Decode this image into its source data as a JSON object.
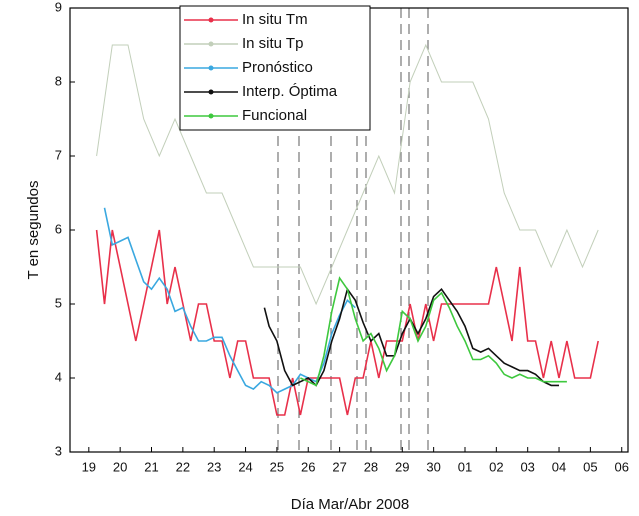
{
  "chart_data": {
    "type": "line",
    "xlabel": "Día Mar/Abr 2008",
    "ylabel": "T en segundos",
    "xlim": [
      -0.6,
      17.2
    ],
    "xticks": [
      {
        "value": 0,
        "label": "19"
      },
      {
        "value": 1,
        "label": "20"
      },
      {
        "value": 2,
        "label": "21"
      },
      {
        "value": 3,
        "label": "22"
      },
      {
        "value": 4,
        "label": "23"
      },
      {
        "value": 5,
        "label": "24"
      },
      {
        "value": 6,
        "label": "25"
      },
      {
        "value": 7,
        "label": "26"
      },
      {
        "value": 8,
        "label": "27"
      },
      {
        "value": 9,
        "label": "28"
      },
      {
        "value": 10,
        "label": "29"
      },
      {
        "value": 11,
        "label": "30"
      },
      {
        "value": 12,
        "label": "01"
      },
      {
        "value": 13,
        "label": "02"
      },
      {
        "value": 14,
        "label": "03"
      },
      {
        "value": 15,
        "label": "04"
      },
      {
        "value": 16,
        "label": "05"
      },
      {
        "value": 17,
        "label": "06"
      }
    ],
    "ylim": [
      3,
      9
    ],
    "yticks": [
      3,
      4,
      5,
      6,
      7,
      8,
      9
    ],
    "grid": false,
    "legend": "top",
    "series": [
      {
        "name": "In situ Tm",
        "color": "#e8304a",
        "x": [
          0.25,
          0.5,
          0.75,
          1,
          1.25,
          1.5,
          1.75,
          2,
          2.25,
          2.5,
          2.75,
          3,
          3.25,
          3.5,
          3.75,
          4,
          4.25,
          4.5,
          4.75,
          5,
          5.25,
          5.5,
          5.75,
          6,
          6.25,
          6.5,
          6.75,
          7,
          7.25,
          7.5,
          7.75,
          8,
          8.25,
          8.5,
          8.75,
          9,
          9.25,
          9.5,
          9.75,
          10,
          10.25,
          10.5,
          10.75,
          11,
          11.25,
          11.5,
          11.75,
          12,
          12.25,
          12.5,
          12.75,
          13,
          13.25,
          13.5,
          13.75,
          14,
          14.25,
          14.5,
          14.75,
          15,
          15.25,
          15.5,
          15.75,
          16,
          16.25
        ],
        "values": [
          6,
          5,
          6,
          5.5,
          5,
          4.5,
          5,
          5.5,
          6,
          5,
          5.5,
          5,
          4.5,
          5,
          5,
          4.5,
          4.5,
          4,
          4.5,
          4.5,
          4,
          4,
          4,
          3.5,
          3.5,
          4,
          3.5,
          4,
          4,
          4,
          4,
          4,
          3.5,
          4,
          4,
          4.5,
          4,
          4.5,
          4.5,
          4.5,
          5,
          4.5,
          5,
          4.5,
          5,
          5,
          5,
          5,
          5,
          5,
          5,
          5.5,
          5,
          4.5,
          5.5,
          4.5,
          4.5,
          4,
          4.5,
          4,
          4.5,
          4,
          4,
          4,
          4.5
        ]
      },
      {
        "name": "In situ Tp",
        "color": "#c2cfba",
        "x": [
          0.25,
          0.75,
          1.25,
          1.75,
          2.25,
          2.75,
          3.25,
          3.75,
          4.25,
          4.75,
          5.25,
          5.75,
          6.25,
          6.75,
          7.25,
          7.75,
          8.25,
          8.75,
          9.25,
          9.75,
          10.25,
          10.75,
          11.25,
          11.75,
          12.25,
          12.75,
          13.25,
          13.75,
          14.25,
          14.75,
          15.25,
          15.75,
          16.25
        ],
        "values": [
          7,
          8.5,
          8.5,
          7.5,
          7,
          7.5,
          7,
          6.5,
          6.5,
          6,
          5.5,
          5.5,
          5.5,
          5.5,
          5,
          5.5,
          6,
          6.5,
          7,
          6.5,
          8,
          8.5,
          8,
          8,
          8,
          7.5,
          6.5,
          6,
          6,
          5.5,
          6,
          5.5,
          6
        ]
      },
      {
        "name": "Pronóstico",
        "color": "#3aa8e0",
        "x": [
          0.5,
          0.75,
          1,
          1.25,
          1.5,
          1.75,
          2,
          2.25,
          2.5,
          2.75,
          3,
          3.25,
          3.5,
          3.75,
          4,
          4.25,
          4.5,
          4.75,
          5,
          5.25,
          5.5,
          5.75,
          6,
          6.25,
          6.5,
          6.75,
          7,
          7.25,
          7.5,
          7.75,
          8,
          8.25,
          8.5
        ],
        "values": [
          6.3,
          5.8,
          5.85,
          5.9,
          5.6,
          5.3,
          5.2,
          5.35,
          5.2,
          4.9,
          4.95,
          4.7,
          4.5,
          4.5,
          4.55,
          4.55,
          4.3,
          4.1,
          3.9,
          3.85,
          3.95,
          3.9,
          3.8,
          3.85,
          3.9,
          4.05,
          4,
          3.95,
          4.2,
          4.6,
          4.85,
          5.05,
          4.95
        ]
      },
      {
        "name": "Interp. Óptima",
        "color": "#111111",
        "x": [
          5.6,
          5.75,
          6,
          6.25,
          6.5,
          6.75,
          7,
          7.25,
          7.5,
          7.75,
          8,
          8.25,
          8.5,
          8.75,
          9,
          9.25,
          9.5,
          9.75,
          10,
          10.25,
          10.5,
          10.75,
          11,
          11.25,
          11.5,
          11.75,
          12,
          12.25,
          12.5,
          12.75,
          13,
          13.25,
          13.5,
          13.75,
          14,
          14.25,
          14.5,
          14.75,
          15
        ],
        "values": [
          4.95,
          4.7,
          4.5,
          4.1,
          3.9,
          3.95,
          4,
          3.9,
          4.1,
          4.5,
          4.8,
          5.2,
          5.05,
          4.75,
          4.5,
          4.6,
          4.3,
          4.3,
          4.6,
          4.8,
          4.6,
          4.8,
          5.1,
          5.2,
          5.05,
          4.9,
          4.7,
          4.4,
          4.35,
          4.4,
          4.3,
          4.2,
          4.15,
          4.1,
          4.1,
          4.05,
          3.95,
          3.9,
          3.9
        ]
      },
      {
        "name": "Funcional",
        "color": "#3ec83e",
        "x": [
          6.75,
          7,
          7.25,
          7.5,
          7.75,
          8,
          8.25,
          8.5,
          8.75,
          9,
          9.25,
          9.5,
          9.75,
          10,
          10.25,
          10.5,
          10.75,
          11,
          11.25,
          11.5,
          11.75,
          12,
          12.25,
          12.5,
          12.75,
          13,
          13.25,
          13.5,
          13.75,
          14,
          14.25,
          14.5,
          14.75,
          15,
          15.25
        ],
        "values": [
          4,
          3.95,
          3.9,
          4.3,
          4.9,
          5.35,
          5.2,
          4.8,
          4.5,
          4.6,
          4.4,
          4.1,
          4.3,
          4.9,
          4.8,
          4.5,
          4.7,
          5.05,
          5.15,
          4.95,
          4.7,
          4.5,
          4.25,
          4.25,
          4.3,
          4.2,
          4.05,
          4,
          4.05,
          4,
          4,
          3.95,
          3.95,
          3.95,
          3.95
        ]
      }
    ]
  }
}
